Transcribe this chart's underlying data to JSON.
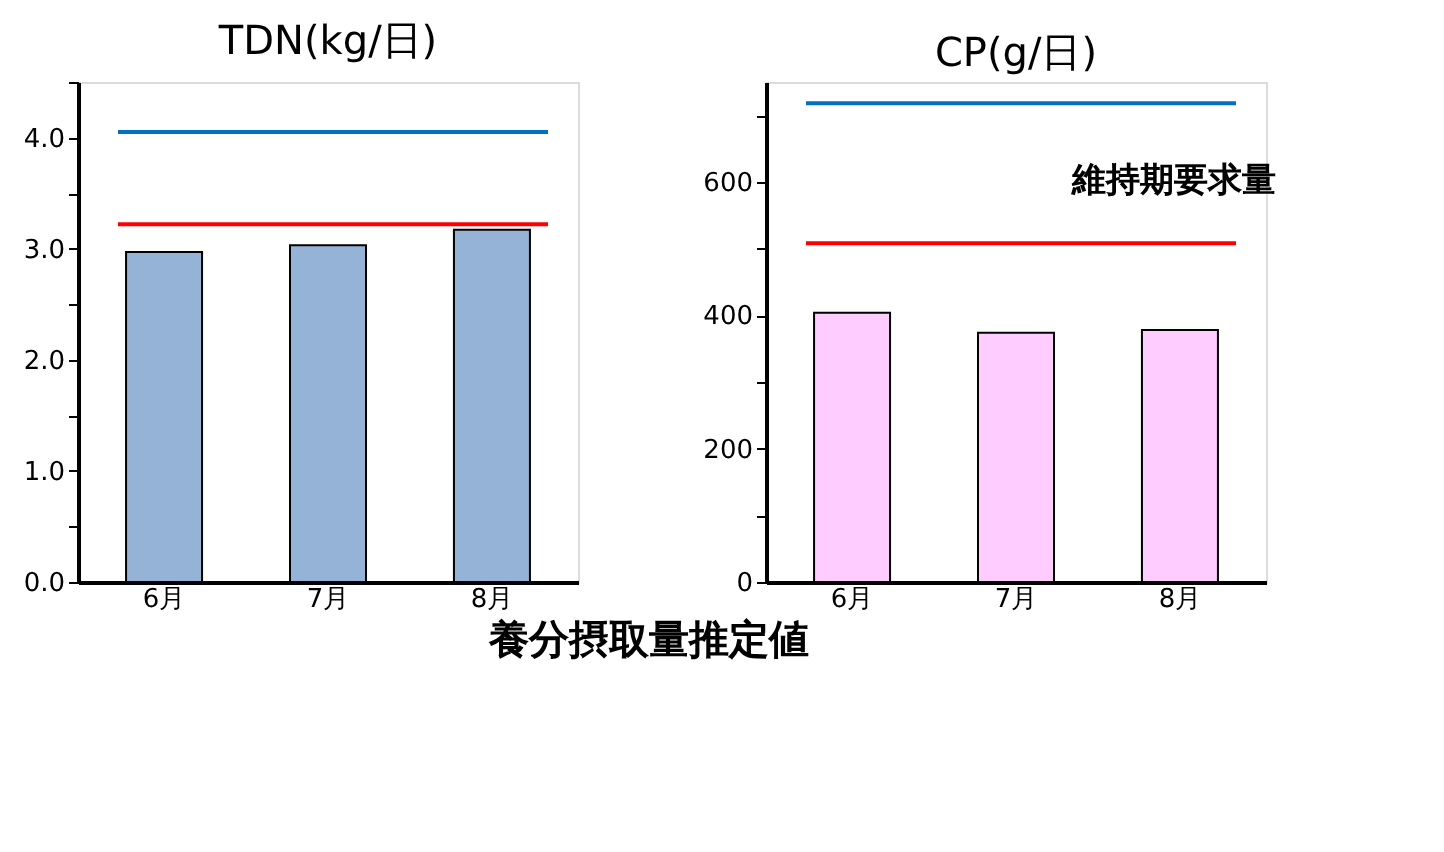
{
  "chart_data": [
    {
      "type": "bar",
      "title": "TDN(kg/日)",
      "categories": [
        "6月",
        "7月",
        "8月"
      ],
      "values": [
        2.97,
        3.03,
        3.17
      ],
      "color": "#95b3d7",
      "ylim": [
        0,
        4.5
      ],
      "yticks": [
        {
          "value": 0,
          "label": "0.0"
        },
        {
          "value": 0.5,
          "label": null
        },
        {
          "value": 1,
          "label": "1.0"
        },
        {
          "value": 1.5,
          "label": null
        },
        {
          "value": 2,
          "label": "2.0"
        },
        {
          "value": 2.5,
          "label": null
        },
        {
          "value": 3,
          "label": "3.0"
        },
        {
          "value": 3.5,
          "label": null
        },
        {
          "value": 4,
          "label": "4.0"
        },
        {
          "value": 4.5,
          "label": null
        }
      ],
      "ref_lines": [
        {
          "axis": "y",
          "value": 4.05,
          "color": "#0070c0"
        },
        {
          "axis": "y",
          "value": 3.22,
          "color": "#ff0000"
        }
      ],
      "annotations": [
        "養分摂取量推定値"
      ],
      "grid": false
    },
    {
      "type": "bar",
      "title": "CP(g/日)",
      "categories": [
        "6月",
        "7月",
        "8月"
      ],
      "values": [
        404,
        374,
        378
      ],
      "color": "#ffccff",
      "ylim": [
        0,
        750
      ],
      "yticks": [
        0,
        {
          "value": 100,
          "label": null
        },
        200,
        {
          "value": 300,
          "label": null
        },
        400,
        {
          "value": 500,
          "label": null
        },
        600,
        {
          "value": 700,
          "label": null
        }
      ],
      "ref_lines": [
        {
          "axis": "y",
          "value": 718,
          "color": "#0070c0"
        },
        {
          "axis": "y",
          "value": 508,
          "color": "#ff0000",
          "label": "維持期要求量"
        }
      ],
      "grid": false
    }
  ]
}
